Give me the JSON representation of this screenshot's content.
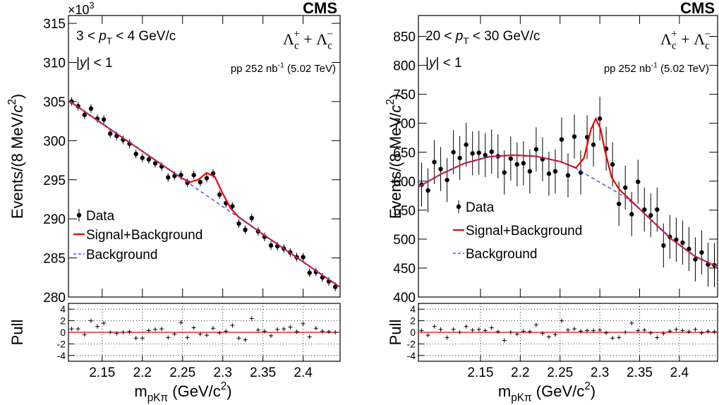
{
  "chart_data": [
    {
      "type": "errorbar",
      "title": "CMS",
      "y_exponent": [
        "×10",
        "3"
      ],
      "kinematic_label": [
        "3 < ",
        "p",
        "T",
        " < 4 GeV/c"
      ],
      "rapidity_label": [
        "|",
        "y",
        "| < 1"
      ],
      "particle_label": [
        "Λ",
        "c",
        "+",
        " + ",
        "Λ",
        "c",
        "−"
      ],
      "lumi_label": [
        "pp 252 nb",
        "-1",
        " (5.02 TeV)"
      ],
      "xlabel": [
        "m",
        "pKπ",
        " (GeV/c",
        "2",
        ")"
      ],
      "ylabel": [
        "Events/(8 MeV/",
        "c",
        "2",
        ")"
      ],
      "xlim": [
        2.108,
        2.446
      ],
      "xticks": [
        2.15,
        2.2,
        2.25,
        2.3,
        2.35,
        2.4
      ],
      "ylim": [
        280,
        316
      ],
      "yticks": [
        280,
        285,
        290,
        295,
        300,
        305,
        310,
        315
      ],
      "series": [
        {
          "name": "Data",
          "color": "#000000",
          "x": [
            2.112,
            2.12,
            2.128,
            2.136,
            2.144,
            2.152,
            2.16,
            2.168,
            2.176,
            2.184,
            2.192,
            2.2,
            2.208,
            2.216,
            2.224,
            2.232,
            2.24,
            2.248,
            2.256,
            2.264,
            2.272,
            2.28,
            2.288,
            2.296,
            2.304,
            2.312,
            2.32,
            2.328,
            2.336,
            2.344,
            2.352,
            2.36,
            2.368,
            2.376,
            2.384,
            2.392,
            2.4,
            2.408,
            2.416,
            2.424,
            2.432,
            2.44
          ],
          "values": [
            305.0,
            304.4,
            303.3,
            304.1,
            302.8,
            302.7,
            300.9,
            300.6,
            300.1,
            299.6,
            298.3,
            297.8,
            297.6,
            297.1,
            296.7,
            295.3,
            295.5,
            295.6,
            294.6,
            295.6,
            294.7,
            295.2,
            295.8,
            293.1,
            292.0,
            291.6,
            289.4,
            288.6,
            290.1,
            288.4,
            287.7,
            286.6,
            286.5,
            286.2,
            285.7,
            285.1,
            285.1,
            283.1,
            283.2,
            282.5,
            282.0,
            281.3
          ],
          "errors": [
            0.55,
            0.55,
            0.55,
            0.55,
            0.55,
            0.55,
            0.55,
            0.55,
            0.55,
            0.55,
            0.55,
            0.55,
            0.55,
            0.55,
            0.55,
            0.55,
            0.55,
            0.55,
            0.55,
            0.55,
            0.55,
            0.55,
            0.55,
            0.55,
            0.55,
            0.55,
            0.55,
            0.55,
            0.55,
            0.55,
            0.55,
            0.55,
            0.55,
            0.55,
            0.55,
            0.55,
            0.55,
            0.55,
            0.55,
            0.55,
            0.55,
            0.55
          ]
        },
        {
          "name": "Signal+Background",
          "color": "#ee0000",
          "x": [
            2.11,
            2.15,
            2.19,
            2.23,
            2.25,
            2.26,
            2.27,
            2.28,
            2.29,
            2.3,
            2.31,
            2.32,
            2.35,
            2.39,
            2.43,
            2.445
          ],
          "values": [
            305.0,
            302.17,
            299.34,
            296.52,
            295.14,
            294.71,
            295.04,
            295.89,
            295.39,
            293.24,
            291.31,
            290.21,
            288.03,
            285.2,
            282.38,
            281.32
          ]
        },
        {
          "name": "Background",
          "color": "#5555dd",
          "dashed": true,
          "x": [
            2.11,
            2.15,
            2.19,
            2.23,
            2.25,
            2.27,
            2.29,
            2.31,
            2.33,
            2.35,
            2.39,
            2.43,
            2.445
          ],
          "values": [
            305.0,
            302.17,
            299.34,
            296.52,
            295.1,
            293.69,
            292.27,
            290.86,
            289.44,
            288.03,
            285.2,
            282.38,
            281.32
          ]
        }
      ],
      "pull": {
        "ylabel": "Pull",
        "ylim": [
          -5,
          5
        ],
        "yticks": [
          -4,
          -2,
          0,
          2,
          4
        ],
        "grid": true,
        "values": [
          0.6,
          0.6,
          -0.4,
          2,
          1,
          1.6,
          0,
          -0.2,
          0,
          0.1,
          -1,
          -1,
          0.3,
          0.5,
          0.6,
          -0.9,
          -0.3,
          1.7,
          -0.9,
          0.8,
          -0.3,
          -0.5,
          0.7,
          -0.1,
          0.2,
          1.2,
          -1,
          -1.3,
          2.4,
          0.4,
          0.2,
          -0.6,
          0.5,
          0.6,
          0.9,
          0.1,
          1.5,
          -0.8,
          0.7,
          0.2,
          0.1,
          0
        ]
      }
    },
    {
      "type": "errorbar",
      "title": "CMS",
      "kinematic_label": [
        "20 < ",
        "p",
        "T",
        " < 30 GeV/c"
      ],
      "rapidity_label": [
        "|",
        "y",
        "| < 1"
      ],
      "particle_label": [
        "Λ",
        "c",
        "+",
        " + ",
        "Λ",
        "c",
        "−"
      ],
      "lumi_label": [
        "pp 252 nb",
        "-1",
        " (5.02 TeV)"
      ],
      "xlabel": [
        "m",
        "pKπ",
        " (GeV/c",
        "2",
        ")"
      ],
      "ylabel": [
        "Events/(8 MeV/",
        "c",
        "2",
        ")"
      ],
      "xlim": [
        2.072,
        2.448
      ],
      "xticks": [
        2.15,
        2.2,
        2.25,
        2.3,
        2.35,
        2.4
      ],
      "ylim": [
        400,
        886
      ],
      "yticks": [
        400,
        450,
        500,
        550,
        600,
        650,
        700,
        750,
        800,
        850
      ],
      "series": [
        {
          "name": "Data",
          "color": "#000000",
          "x": [
            2.076,
            2.084,
            2.092,
            2.1,
            2.108,
            2.116,
            2.124,
            2.132,
            2.14,
            2.148,
            2.156,
            2.164,
            2.172,
            2.18,
            2.188,
            2.196,
            2.204,
            2.212,
            2.22,
            2.228,
            2.236,
            2.244,
            2.252,
            2.26,
            2.268,
            2.276,
            2.284,
            2.292,
            2.3,
            2.308,
            2.316,
            2.324,
            2.332,
            2.34,
            2.348,
            2.356,
            2.364,
            2.372,
            2.38,
            2.388,
            2.396,
            2.404,
            2.412,
            2.42,
            2.428,
            2.436,
            2.444
          ],
          "values": [
            594,
            584,
            633,
            621,
            602,
            650,
            640,
            663,
            648,
            649,
            645,
            651,
            643,
            615,
            639,
            629,
            631,
            617,
            655,
            638,
            613,
            617,
            672,
            610,
            677,
            615,
            676,
            663,
            708,
            656,
            629,
            561,
            589,
            543,
            599,
            551,
            541,
            551,
            489,
            504,
            499,
            494,
            483,
            465,
            477,
            456,
            455
          ],
          "errors": [
            38,
            38,
            38,
            38,
            38,
            38,
            38,
            38,
            38,
            38,
            38,
            38,
            38,
            38,
            38,
            38,
            38,
            38,
            38,
            38,
            38,
            38,
            38,
            38,
            38,
            38,
            38,
            38,
            38,
            38,
            38,
            38,
            38,
            38,
            38,
            38,
            38,
            38,
            38,
            38,
            38,
            38,
            38,
            38,
            38,
            38,
            38
          ]
        },
        {
          "name": "Signal+Background",
          "color": "#ee0000",
          "x": [
            2.072,
            2.1,
            2.13,
            2.16,
            2.19,
            2.22,
            2.25,
            2.27,
            2.28,
            2.289,
            2.295,
            2.301,
            2.306,
            2.315,
            2.325,
            2.35,
            2.39,
            2.42,
            2.448
          ],
          "values": [
            590,
            612,
            631,
            642,
            645,
            643,
            634,
            623,
            640,
            690,
            708,
            690,
            655,
            606,
            585,
            552,
            500,
            470,
            452
          ]
        },
        {
          "name": "Background",
          "color": "#5555dd",
          "dashed": true,
          "x": [
            2.072,
            2.1,
            2.13,
            2.16,
            2.19,
            2.22,
            2.25,
            2.27,
            2.29,
            2.31,
            2.33,
            2.35,
            2.39,
            2.42,
            2.448
          ],
          "values": [
            590,
            612,
            631,
            642,
            645,
            643,
            634,
            622,
            606,
            590,
            574,
            552,
            500,
            470,
            452
          ]
        }
      ],
      "pull": {
        "ylabel": "Pull",
        "ylim": [
          -5,
          5
        ],
        "yticks": [
          -4,
          -2,
          0,
          2,
          4
        ],
        "grid": true,
        "values": [
          0.3,
          -0.5,
          1,
          0.5,
          -0.9,
          0.5,
          0,
          1,
          0.4,
          0.5,
          0.3,
          0.8,
          0.1,
          -1.4,
          0,
          -0.3,
          0.2,
          0.1,
          1.3,
          -0.2,
          -0.8,
          -0.4,
          2,
          0.4,
          0.6,
          0.2,
          0.3,
          0.3,
          0.4,
          -0.1,
          -1,
          -0.9,
          0,
          1.6,
          0.3,
          0.4,
          -0.1,
          -0.9,
          -0.2,
          0.2,
          0.5,
          0.3,
          0.1,
          0.5,
          -0.1,
          0.2,
          0.1
        ]
      }
    }
  ]
}
